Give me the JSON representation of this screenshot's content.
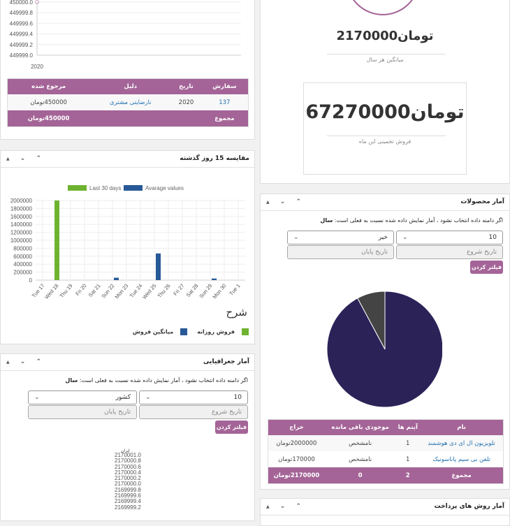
{
  "refunds_panel": {
    "chart": {
      "y_ticks": [
        "450000.0",
        "449999.8",
        "449999.6",
        "449999.4",
        "449999.2",
        "449999.0"
      ],
      "x_ticks": [
        "2020"
      ],
      "points": [
        {
          "x": "2020",
          "y": 450000
        }
      ]
    },
    "table": {
      "headers": [
        "سفارش",
        "تاریخ",
        "دلیل",
        "مرجوع شده"
      ],
      "rows": [
        {
          "order": "137",
          "date": "2020",
          "reason": "نارضایتی مشتری",
          "amount": "450000تومان"
        }
      ],
      "total_label": "مجموع",
      "total_amount": "450000تومان"
    }
  },
  "compare_panel": {
    "title": "مقایسه 15 روز گذشته",
    "legend_title": "شرح",
    "legend_items": [
      {
        "label": "فروش روزانه",
        "color": "#6eb330"
      },
      {
        "label": "میانگین فروش",
        "color": "#275998"
      }
    ]
  },
  "chart_data": {
    "type": "bar",
    "categories": [
      "Tue 17",
      "Wed 18",
      "Thu 19",
      "Fri 20",
      "Sat 21",
      "Sun 22",
      "Mon 23",
      "Tue 24",
      "Wed 25",
      "Thu 26",
      "Fri 27",
      "Sat 28",
      "Sun 29",
      "Mon 30",
      "Tue 1"
    ],
    "series": [
      {
        "name": "Last 30 days",
        "color": "#6eb330",
        "values": [
          0,
          2000000,
          0,
          0,
          0,
          0,
          0,
          0,
          0,
          0,
          0,
          0,
          0,
          0,
          0
        ]
      },
      {
        "name": "Avarage values",
        "color": "#275998",
        "values": [
          0,
          0,
          0,
          0,
          0,
          60000,
          0,
          0,
          670000,
          0,
          0,
          0,
          40000,
          0,
          0
        ]
      }
    ],
    "ylim": [
      0,
      2000000
    ],
    "y_ticks": [
      "2000000",
      "1800000",
      "1600000",
      "1400000",
      "1200000",
      "1000000",
      "800000",
      "600000",
      "400000",
      "200000",
      "0"
    ],
    "grid": true,
    "legend": "top"
  },
  "geo_panel": {
    "title": "آمار جغرافیایی",
    "note": "اگر دامنه داده انتخاب نشود ، آمار نمایش داده شده نسبت به فعلی است:",
    "note_bold": "سال",
    "select_count": "10",
    "select_type": "کشور",
    "start_placeholder": "تاریخ شروع",
    "end_placeholder": "تاریخ پایان",
    "filter_label": "فیلتر کردن",
    "chart_label": "ایران",
    "y_ticks": [
      "2170001.0",
      "2170000.8",
      "2170000.6",
      "2170000.4",
      "2170000.2",
      "2170000.0",
      "2169999.8",
      "2169999.6",
      "2169999.4",
      "2169999.2"
    ]
  },
  "summary_panel": {
    "yearly_avg": "2170000تومان",
    "yearly_avg_caption": "میانگین هر سال",
    "month_estimate": "67270000تومان",
    "month_estimate_caption": "فروش تخمینی این ماه"
  },
  "products_panel": {
    "title": "آمار محصولات",
    "note": "اگر دامنه داده انتخاب نشود ، آمار نمایش داده شده نسبت به فعلی است:",
    "note_bold": "سال",
    "select_count": "10",
    "select_option": "خیر",
    "start_placeholder": "تاریخ شروع",
    "end_placeholder": "تاریخ پایان",
    "filter_label": "فیلتر کردن",
    "pie": [
      {
        "value": 2000000,
        "color": "#2b2258"
      },
      {
        "value": 170000,
        "color": "#444444"
      }
    ],
    "table": {
      "headers": [
        "نام",
        "آیتم ها",
        "موجودی باقی مانده",
        "حراج"
      ],
      "rows": [
        {
          "name": "تلویزیون ال ای دی هوشمند",
          "items": "1",
          "stock": "نامشخص",
          "sale": "2000000تومان"
        },
        {
          "name": "تلفن بی سیم پاناسونیک",
          "items": "1",
          "stock": "نامشخص",
          "sale": "170000تومان"
        }
      ],
      "total_label": "مجموع",
      "total_items": "2",
      "total_stock": "0",
      "total_sale": "2170000تومان"
    }
  },
  "payments_panel": {
    "title": "آمار روش های پرداخت"
  },
  "panel_controls": {
    "up": "⌃",
    "down": "⌄",
    "toggle": "▲"
  }
}
